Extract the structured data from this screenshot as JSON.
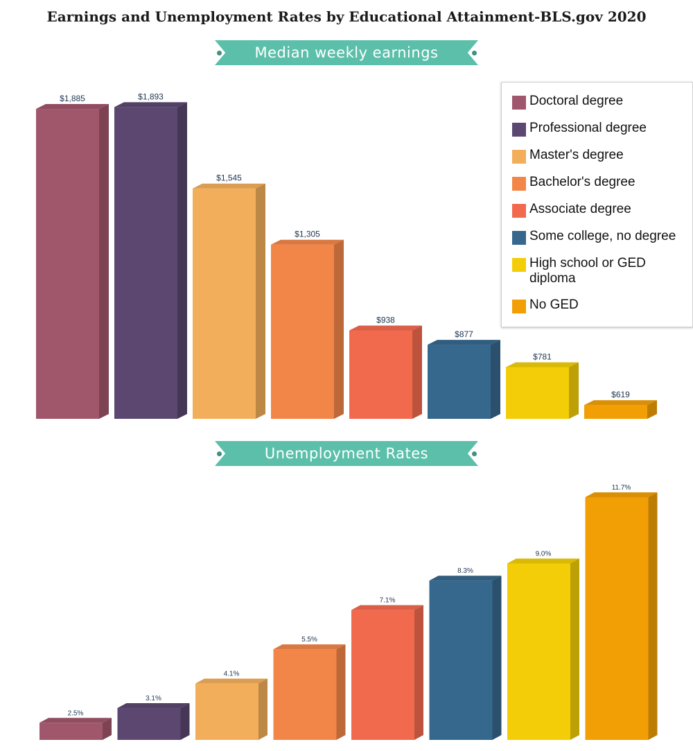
{
  "title": "Earnings and Unemployment Rates by Educational Attainment-BLS.gov 2020",
  "chart_data": [
    {
      "type": "bar",
      "title": "Median weekly earnings",
      "categories": [
        "Doctoral degree",
        "Professional degree",
        "Master's degree",
        "Bachelor's degree",
        "Associate degree",
        "Some college, no degree",
        "High school or GED diploma",
        "No GED"
      ],
      "values": [
        1885,
        1893,
        1545,
        1305,
        938,
        877,
        781,
        619
      ],
      "labels": [
        "$1,885",
        "$1,893",
        "$1,545",
        "$1,305",
        "$938",
        "$877",
        "$781",
        "$619"
      ],
      "ylim": [
        560,
        1900
      ],
      "legend": "top-right",
      "grid": false
    },
    {
      "type": "bar",
      "title": "Unemployment Rates",
      "categories": [
        "Doctoral degree",
        "Professional degree",
        "Master's degree",
        "Bachelor's degree",
        "Associate degree",
        "Some college, no degree",
        "High school or GED diploma",
        "No GED"
      ],
      "values": [
        2.5,
        3.1,
        4.1,
        5.5,
        7.1,
        8.3,
        9.0,
        11.7
      ],
      "labels": [
        "2.5%",
        "3.1%",
        "4.1%",
        "5.5%",
        "7.1%",
        "8.3%",
        "9.0%",
        "11.7%"
      ],
      "ylim": [
        1.8,
        11.7
      ],
      "grid": false
    }
  ],
  "legend": {
    "items": [
      {
        "label": "Doctoral degree",
        "color": "#a0566b"
      },
      {
        "label": "Professional degree",
        "color": "#5b4770"
      },
      {
        "label": "Master's degree",
        "color": "#f2ae5a"
      },
      {
        "label": "Bachelor's degree",
        "color": "#f28548"
      },
      {
        "label": "Associate degree",
        "color": "#f26a4e"
      },
      {
        "label": "Some college, no degree",
        "color": "#36678c"
      },
      {
        "label": "High school or GED diploma",
        "color": "#f2cd08"
      },
      {
        "label": "No GED",
        "color": "#f29f05"
      }
    ]
  }
}
